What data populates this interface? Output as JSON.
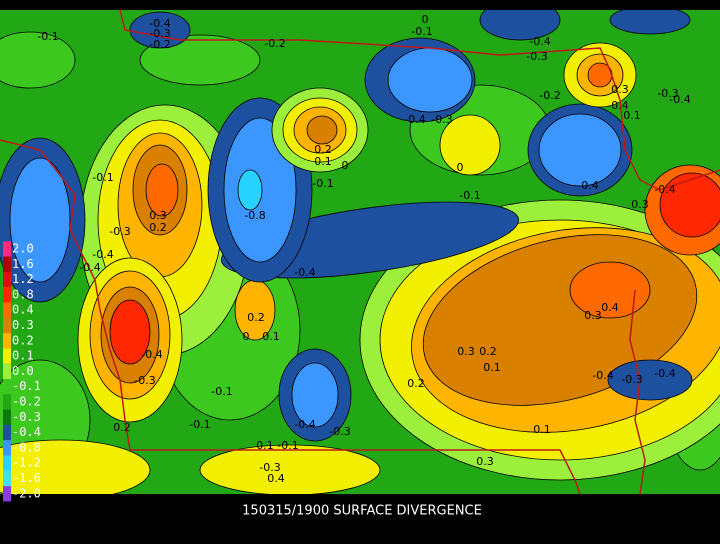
{
  "title": "150315/1900 SURFACE DIVERGENCE",
  "legend": {
    "ticks": [
      {
        "value": 2.0,
        "label": "2.0"
      },
      {
        "value": 1.6,
        "label": "1.6"
      },
      {
        "value": 1.2,
        "label": "1.2"
      },
      {
        "value": 0.8,
        "label": "0.8"
      },
      0.4,
      0.3,
      0.2,
      0.1,
      {
        "value": 0,
        "label": "0.0"
      },
      -0.1,
      -0.2,
      -0.3,
      -0.4,
      -0.8,
      -1.2,
      -1.6,
      {
        "value": -2.0,
        "label": "-2.0"
      }
    ],
    "colors": [
      "#ff2a80",
      "#b00000",
      "#dd1010",
      "#ff2800",
      "#ff6a00",
      "#d98000",
      "#ffb400",
      "#f2f000",
      "#9cf03c",
      "#3cc81e",
      "#22a814",
      "#0a7a0a",
      "#1e50a0",
      "#3c96ff",
      "#28d2ff",
      "#40e0e8",
      "#8c3cdc"
    ]
  },
  "contour_labels": [
    "-0.1",
    "-0.4",
    "-0.3",
    "-0.2",
    "0",
    "-0.1",
    "-0.2",
    "-0.4",
    "-0.3",
    "0.3",
    "-0.2",
    "-0.3",
    "-0.4",
    "-0.4",
    "0.1",
    "-0.4",
    "-0.3",
    "0.2",
    "0.1",
    "0",
    "0",
    "-0.1",
    "-0.1",
    "-0.1",
    "-0.4",
    "-0.4",
    "0.3",
    "0.3",
    "0.2",
    "-0.8",
    "-0.3",
    "-0.4",
    "-0.4",
    "-0.4",
    "0.4",
    "0.3",
    "0.2",
    "0",
    "0.1",
    "0.3",
    "0.2",
    "0.1",
    "-0.4",
    "-0.3",
    "-0.1",
    "0.2",
    "-0.4",
    "-0.3",
    "-0.4",
    "-0.1",
    "-0.4",
    "-0.3",
    "0.2",
    "0.1",
    "-0.1",
    "-0.3",
    "0.4",
    "0.3",
    "0.1"
  ]
}
